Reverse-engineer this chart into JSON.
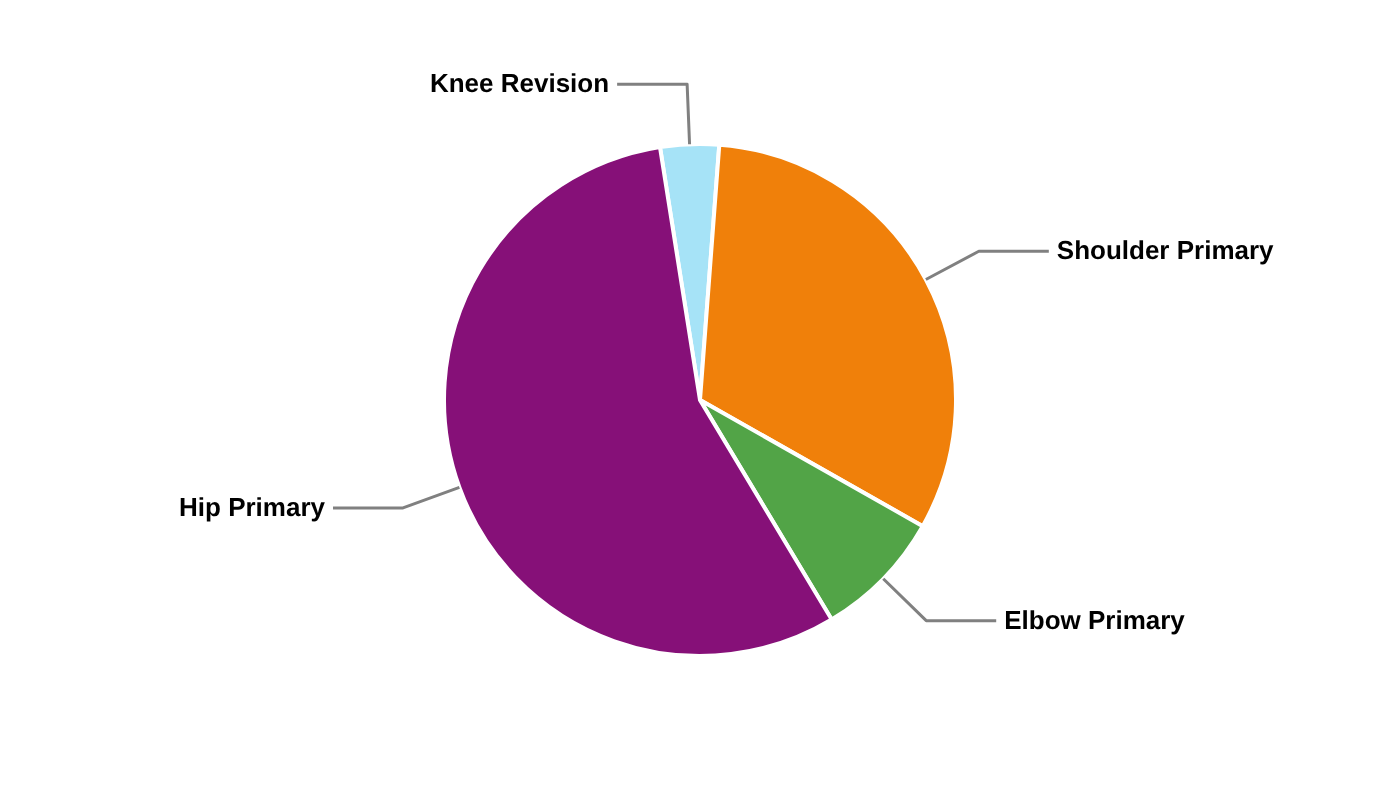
{
  "chart_data": {
    "type": "pie",
    "categories": [
      "Knee Revision",
      "Shoulder Primary",
      "Elbow Primary",
      "Hip Primary"
    ],
    "values": [
      3.7,
      32.0,
      8.2,
      56.1
    ],
    "colors": [
      "#a6e3f7",
      "#f0800a",
      "#52a447",
      "#861078"
    ]
  }
}
